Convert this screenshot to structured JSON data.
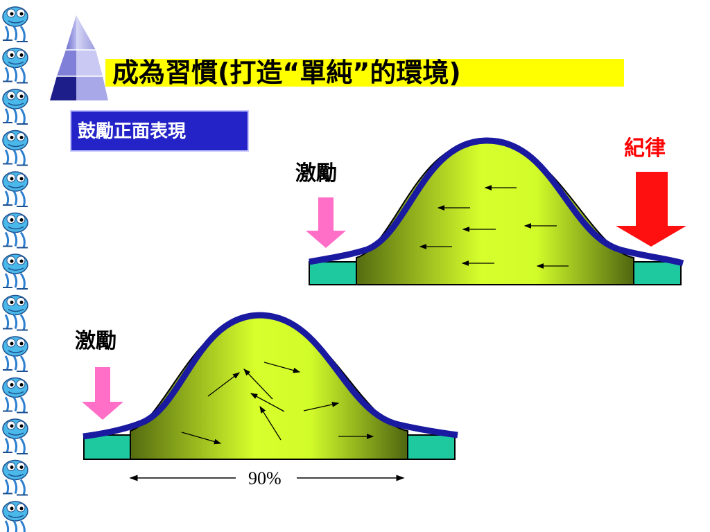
{
  "slide": {
    "title": "成為習慣(打造“單純”的環境)",
    "badge": "鼓勵正面表現",
    "top_diagram": {
      "left_arrow_label": "激勵",
      "right_arrow_label": "紀律"
    },
    "bottom_diagram": {
      "left_arrow_label": "激勵",
      "span_label": "90%"
    }
  },
  "colors": {
    "title_highlight": "#ffff00",
    "badge_bg": "#2323c8",
    "hill_outline": "#1a1aa0",
    "hill_fill_light": "#d4ff2a",
    "hill_fill_dark": "#5a7012",
    "base_teal": "#1ec9a0",
    "pink_arrow": "#ff6ec7",
    "red_arrow": "#ff1010",
    "red_label": "#ff0000"
  }
}
